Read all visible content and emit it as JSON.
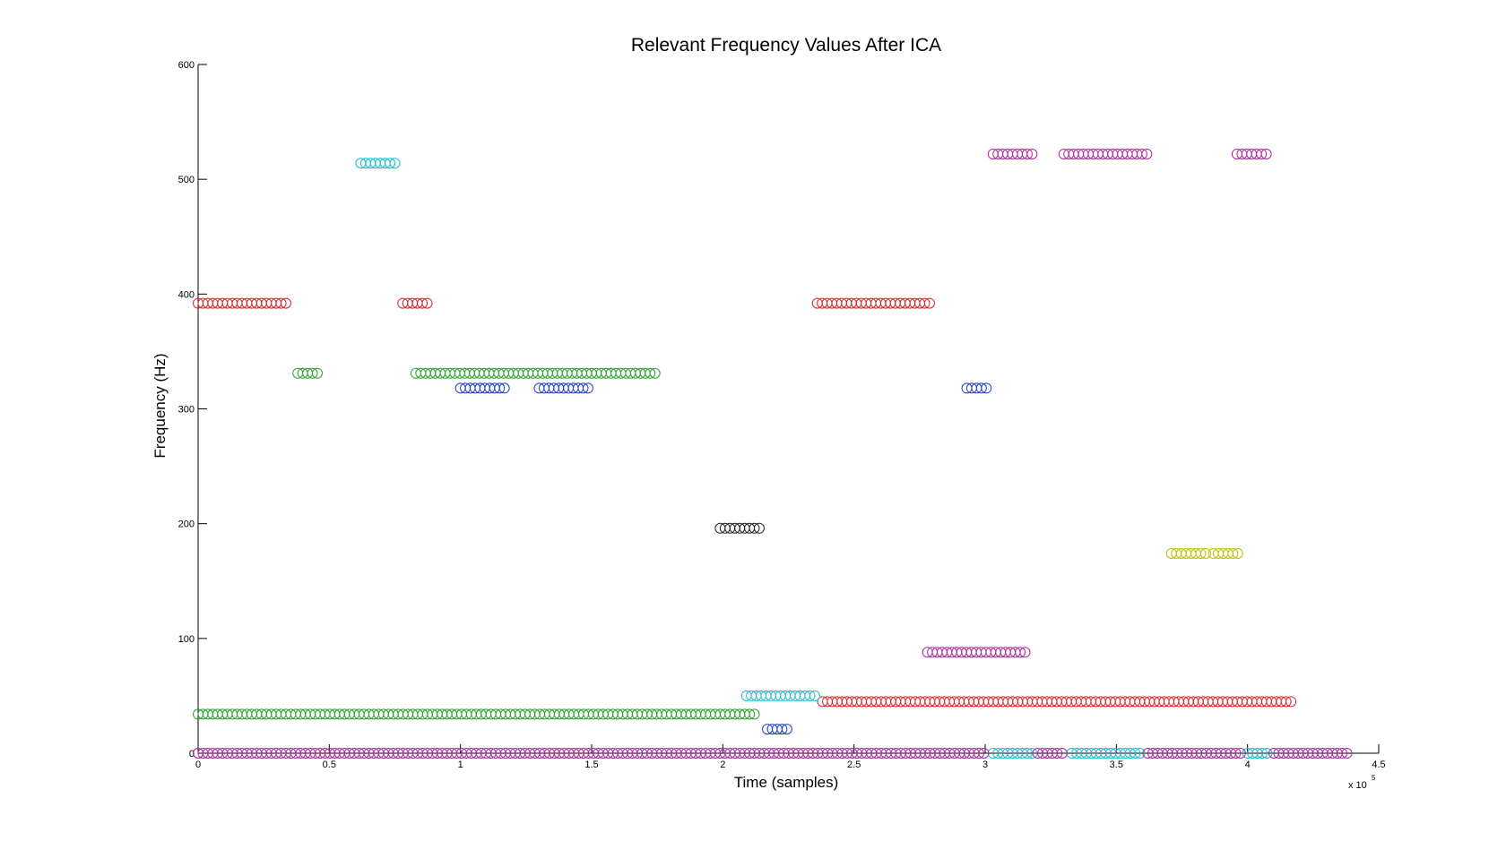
{
  "chart_data": {
    "type": "scatter",
    "title": "Relevant Frequency Values After ICA",
    "xlabel": "Time (samples)",
    "ylabel": "Frequency (Hz)",
    "x_multiplier_label": "x 10",
    "x_multiplier_exp": "5",
    "xlim": [
      0,
      4.5
    ],
    "ylim": [
      0,
      600
    ],
    "xticks": [
      "0",
      "0.5",
      "1",
      "1.5",
      "2",
      "2.5",
      "3",
      "3.5",
      "4",
      "4.5"
    ],
    "xtick_values": [
      0,
      0.5,
      1,
      1.5,
      2,
      2.5,
      3,
      3.5,
      4,
      4.5
    ],
    "yticks": [
      "0",
      "100",
      "200",
      "300",
      "400",
      "500",
      "600"
    ],
    "ytick_values": [
      0,
      100,
      200,
      300,
      400,
      500,
      600
    ],
    "marker": "circle",
    "x_step": 0.0186,
    "grid": false,
    "segments": [
      {
        "color": "#d62728",
        "y": 392,
        "x_start": 0.0,
        "x_end": 0.34
      },
      {
        "color": "#d62728",
        "y": 392,
        "x_start": 0.78,
        "x_end": 0.88
      },
      {
        "color": "#d62728",
        "y": 392,
        "x_start": 2.36,
        "x_end": 2.8
      },
      {
        "color": "#d62728",
        "y": 45,
        "x_start": 2.38,
        "x_end": 4.17
      },
      {
        "color": "#2ca02c",
        "y": 331,
        "x_start": 0.38,
        "x_end": 0.46
      },
      {
        "color": "#2ca02c",
        "y": 331,
        "x_start": 0.83,
        "x_end": 1.75
      },
      {
        "color": "#2ca02c",
        "y": 34,
        "x_start": 0.0,
        "x_end": 2.13
      },
      {
        "color": "#17becf",
        "y": 514,
        "x_start": 0.62,
        "x_end": 0.76
      },
      {
        "color": "#17becf",
        "y": 50,
        "x_start": 2.09,
        "x_end": 2.36
      },
      {
        "color": "#17becf",
        "y": 0,
        "x_start": 3.03,
        "x_end": 3.18
      },
      {
        "color": "#17becf",
        "y": 0,
        "x_start": 3.33,
        "x_end": 3.6
      },
      {
        "color": "#17becf",
        "y": 0,
        "x_start": 4.0,
        "x_end": 4.08
      },
      {
        "color": "#1f3fbf",
        "y": 318,
        "x_start": 1.0,
        "x_end": 1.18
      },
      {
        "color": "#1f3fbf",
        "y": 318,
        "x_start": 1.3,
        "x_end": 1.5
      },
      {
        "color": "#1f3fbf",
        "y": 318,
        "x_start": 2.93,
        "x_end": 3.02
      },
      {
        "color": "#1f3fbf",
        "y": 21,
        "x_start": 2.17,
        "x_end": 2.25
      },
      {
        "color": "#222222",
        "y": 196,
        "x_start": 1.99,
        "x_end": 2.15
      },
      {
        "color": "#c0392b",
        "y": 0,
        "x_start": 0.0,
        "x_end": 0.0
      },
      {
        "color": "#b0279f",
        "y": 522,
        "x_start": 3.03,
        "x_end": 3.18
      },
      {
        "color": "#b0279f",
        "y": 522,
        "x_start": 3.3,
        "x_end": 3.62
      },
      {
        "color": "#b0279f",
        "y": 522,
        "x_start": 3.96,
        "x_end": 4.08
      },
      {
        "color": "#b0279f",
        "y": 88,
        "x_start": 2.78,
        "x_end": 3.16
      },
      {
        "color": "#b0279f",
        "y": 0,
        "x_start": 0.0,
        "x_end": 3.01
      },
      {
        "color": "#b0279f",
        "y": 0,
        "x_start": 3.2,
        "x_end": 3.3
      },
      {
        "color": "#b0279f",
        "y": 0,
        "x_start": 3.62,
        "x_end": 3.98
      },
      {
        "color": "#b0279f",
        "y": 0,
        "x_start": 4.1,
        "x_end": 4.39
      },
      {
        "color": "#bfbf00",
        "y": 174,
        "x_start": 3.71,
        "x_end": 3.85
      },
      {
        "color": "#bfbf00",
        "y": 174,
        "x_start": 3.87,
        "x_end": 3.97
      }
    ]
  }
}
